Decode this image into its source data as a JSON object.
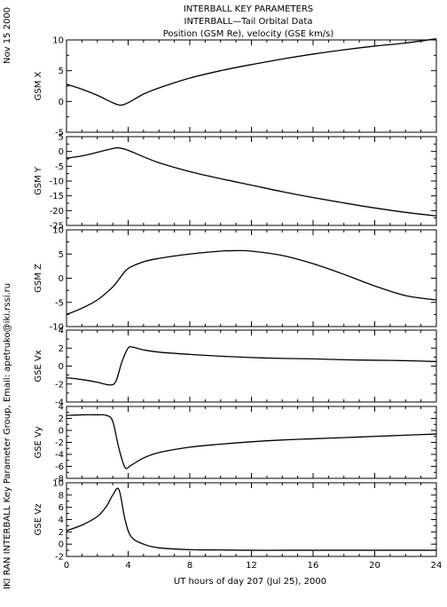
{
  "header": {
    "title_line1": "INTERBALL KEY PARAMETERS",
    "title_line2": "INTERBALL—Tail Orbital Data",
    "title_line3": "Position (GSM Re), velocity (GSE km/s)"
  },
  "side_date": "Nov 15 2000",
  "side_credit": "IKI RAN INTERBALL Key Parameter Group, Email: apetruko@iki.rssi.ru",
  "chart_data": {
    "type": "line",
    "xlabel": "UT hours of day 207 (Jul 25), 2000",
    "xlim": [
      0,
      24
    ],
    "xticks": [
      0,
      4,
      8,
      12,
      16,
      20,
      24
    ],
    "xtick_labels": [
      "0",
      "4",
      "8",
      "12",
      "16",
      "20",
      "24"
    ],
    "panels": [
      {
        "ylabel": "GSM X",
        "ylim": [
          -5,
          10
        ],
        "yticks": [
          -5,
          0,
          5,
          10
        ],
        "ytick_labels": [
          "-5",
          "0",
          "5",
          "10"
        ],
        "x": [
          0,
          1,
          2,
          3,
          3.5,
          4,
          5,
          6,
          8,
          10,
          12,
          14,
          16,
          18,
          20,
          22,
          24
        ],
        "y": [
          2.8,
          2.0,
          1.0,
          -0.2,
          -0.6,
          -0.2,
          1.2,
          2.2,
          3.8,
          5.0,
          6.0,
          6.9,
          7.7,
          8.4,
          9.0,
          9.5,
          10.2
        ]
      },
      {
        "ylabel": "GSM Y",
        "ylim": [
          -25,
          5
        ],
        "yticks": [
          -25,
          -20,
          -15,
          -10,
          -5,
          0,
          5
        ],
        "ytick_labels": [
          "-25",
          "-20",
          "-15",
          "-10",
          "-5",
          "0",
          "5"
        ],
        "x": [
          0,
          1,
          2,
          3,
          3.4,
          4,
          5,
          6,
          8,
          10,
          12,
          14,
          16,
          18,
          20,
          22,
          24
        ],
        "y": [
          -2.3,
          -1.5,
          -0.3,
          1.0,
          1.2,
          0.4,
          -1.8,
          -3.8,
          -6.8,
          -9.2,
          -11.4,
          -13.6,
          -15.6,
          -17.4,
          -19.1,
          -20.6,
          -21.8
        ]
      },
      {
        "ylabel": "GSM Z",
        "ylim": [
          -10,
          10
        ],
        "yticks": [
          -10,
          -5,
          0,
          5,
          10
        ],
        "ytick_labels": [
          "-10",
          "-5",
          "0",
          "5",
          "10"
        ],
        "x": [
          0,
          1,
          2,
          3,
          3.5,
          4,
          5,
          6,
          8,
          10,
          11,
          12,
          14,
          16,
          18,
          20,
          22,
          24
        ],
        "y": [
          -7.5,
          -6.2,
          -4.5,
          -1.8,
          0.2,
          2.0,
          3.4,
          4.1,
          5.0,
          5.6,
          5.7,
          5.6,
          4.7,
          3.0,
          0.8,
          -1.6,
          -3.6,
          -4.5
        ]
      },
      {
        "ylabel": "GSE Vx",
        "ylim": [
          -4,
          4
        ],
        "yticks": [
          -4,
          -2,
          0,
          2,
          4
        ],
        "ytick_labels": [
          "-4",
          "-2",
          "0",
          "2",
          "4"
        ],
        "x": [
          0,
          1,
          2,
          2.8,
          3.2,
          3.6,
          4.0,
          4.3,
          5,
          6,
          8,
          10,
          12,
          14,
          16,
          18,
          20,
          22,
          24
        ],
        "y": [
          -1.3,
          -1.5,
          -1.8,
          -2.1,
          -1.7,
          0.5,
          2.0,
          2.1,
          1.8,
          1.55,
          1.3,
          1.1,
          0.95,
          0.85,
          0.8,
          0.7,
          0.65,
          0.6,
          0.5
        ]
      },
      {
        "ylabel": "GSE Vy",
        "ylim": [
          -8,
          4
        ],
        "yticks": [
          -8,
          -6,
          -4,
          -2,
          0,
          2,
          4
        ],
        "ytick_labels": [
          "-8",
          "-6",
          "-4",
          "-2",
          "0",
          "2",
          "4"
        ],
        "x": [
          0,
          1,
          2,
          2.6,
          3.0,
          3.4,
          3.8,
          4.2,
          5,
          6,
          8,
          10,
          12,
          14,
          16,
          18,
          20,
          22,
          24
        ],
        "y": [
          2.5,
          2.6,
          2.6,
          2.5,
          1.5,
          -3.0,
          -6.2,
          -5.8,
          -4.6,
          -3.7,
          -2.8,
          -2.3,
          -1.9,
          -1.6,
          -1.4,
          -1.2,
          -1.0,
          -0.8,
          -0.6
        ]
      },
      {
        "ylabel": "GSE Vz",
        "ylim": [
          -2,
          10
        ],
        "yticks": [
          -2,
          0,
          2,
          4,
          6,
          8,
          10
        ],
        "ytick_labels": [
          "-2",
          "0",
          "2",
          "4",
          "6",
          "8",
          "10"
        ],
        "x": [
          0,
          1,
          2,
          2.6,
          3.0,
          3.4,
          3.8,
          4.2,
          5,
          6,
          8,
          10,
          12,
          14,
          16,
          18,
          20,
          22,
          24
        ],
        "y": [
          2.2,
          3.1,
          4.5,
          6.2,
          8.0,
          8.9,
          4.0,
          1.2,
          0.0,
          -0.6,
          -0.9,
          -0.95,
          -1.0,
          -1.0,
          -1.0,
          -1.0,
          -1.0,
          -1.0,
          -1.0
        ]
      }
    ]
  }
}
